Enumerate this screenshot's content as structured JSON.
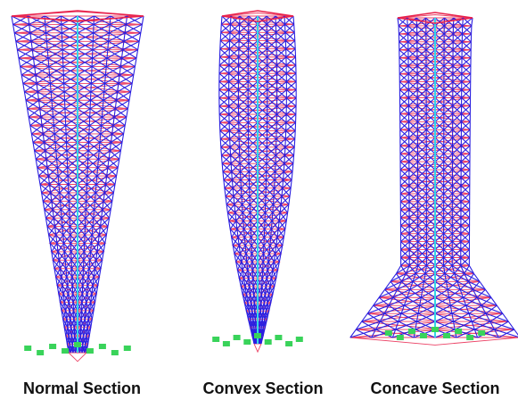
{
  "colors": {
    "brace": "#2a1fe0",
    "floor": "#e8204a",
    "support": "#39d35a",
    "core": "#35d6e6"
  },
  "towers": [
    {
      "name": "normal-section-tower",
      "caption": "Normal Section",
      "profile": "straight"
    },
    {
      "name": "convex-section-tower",
      "caption": "Convex Section",
      "profile": "convex"
    },
    {
      "name": "concave-section-tower",
      "caption": "Concave Section",
      "profile": "concave"
    }
  ]
}
